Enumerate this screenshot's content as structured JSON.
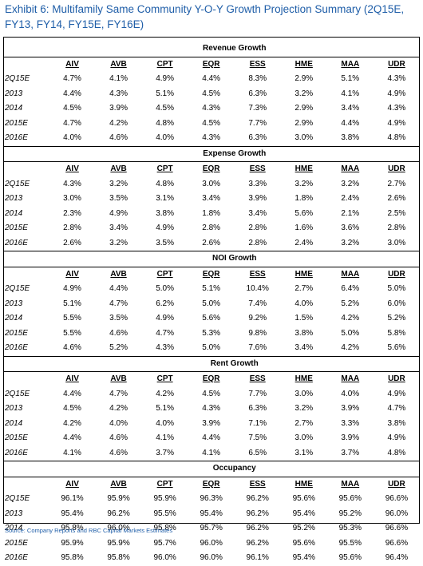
{
  "title": "Exhibit 6: Multifamily Same Community Y-O-Y Growth Projection Summary (2Q15E, FY13, FY14, FY15E, FY16E)",
  "columns": [
    "AIV",
    "AVB",
    "CPT",
    "EQR",
    "ESS",
    "HME",
    "MAA",
    "UDR"
  ],
  "sections": [
    {
      "name": "Revenue Growth",
      "rows": [
        {
          "label": "2Q15E",
          "values": [
            "4.7%",
            "4.1%",
            "4.9%",
            "4.4%",
            "8.3%",
            "2.9%",
            "5.1%",
            "4.3%"
          ]
        },
        {
          "label": "2013",
          "values": [
            "4.4%",
            "4.3%",
            "5.1%",
            "4.5%",
            "6.3%",
            "3.2%",
            "4.1%",
            "4.9%"
          ]
        },
        {
          "label": "2014",
          "values": [
            "4.5%",
            "3.9%",
            "4.5%",
            "4.3%",
            "7.3%",
            "2.9%",
            "3.4%",
            "4.3%"
          ]
        },
        {
          "label": "2015E",
          "values": [
            "4.7%",
            "4.2%",
            "4.8%",
            "4.5%",
            "7.7%",
            "2.9%",
            "4.4%",
            "4.9%"
          ]
        },
        {
          "label": "2016E",
          "values": [
            "4.0%",
            "4.6%",
            "4.0%",
            "4.3%",
            "6.3%",
            "3.0%",
            "3.8%",
            "4.8%"
          ]
        }
      ]
    },
    {
      "name": "Expense Growth",
      "rows": [
        {
          "label": "2Q15E",
          "values": [
            "4.3%",
            "3.2%",
            "4.8%",
            "3.0%",
            "3.3%",
            "3.2%",
            "3.2%",
            "2.7%"
          ]
        },
        {
          "label": "2013",
          "values": [
            "3.0%",
            "3.5%",
            "3.1%",
            "3.4%",
            "3.9%",
            "1.8%",
            "2.4%",
            "2.6%"
          ]
        },
        {
          "label": "2014",
          "values": [
            "2.3%",
            "4.9%",
            "3.8%",
            "1.8%",
            "3.4%",
            "5.6%",
            "2.1%",
            "2.5%"
          ]
        },
        {
          "label": "2015E",
          "values": [
            "2.8%",
            "3.4%",
            "4.9%",
            "2.8%",
            "2.8%",
            "1.6%",
            "3.6%",
            "2.8%"
          ]
        },
        {
          "label": "2016E",
          "values": [
            "2.6%",
            "3.2%",
            "3.5%",
            "2.6%",
            "2.8%",
            "2.4%",
            "3.2%",
            "3.0%"
          ]
        }
      ]
    },
    {
      "name": "NOI Growth",
      "rows": [
        {
          "label": "2Q15E",
          "values": [
            "4.9%",
            "4.4%",
            "5.0%",
            "5.1%",
            "10.4%",
            "2.7%",
            "6.4%",
            "5.0%"
          ]
        },
        {
          "label": "2013",
          "values": [
            "5.1%",
            "4.7%",
            "6.2%",
            "5.0%",
            "7.4%",
            "4.0%",
            "5.2%",
            "6.0%"
          ]
        },
        {
          "label": "2014",
          "values": [
            "5.5%",
            "3.5%",
            "4.9%",
            "5.6%",
            "9.2%",
            "1.5%",
            "4.2%",
            "5.2%"
          ]
        },
        {
          "label": "2015E",
          "values": [
            "5.5%",
            "4.6%",
            "4.7%",
            "5.3%",
            "9.8%",
            "3.8%",
            "5.0%",
            "5.8%"
          ]
        },
        {
          "label": "2016E",
          "values": [
            "4.6%",
            "5.2%",
            "4.3%",
            "5.0%",
            "7.6%",
            "3.4%",
            "4.2%",
            "5.6%"
          ]
        }
      ]
    },
    {
      "name": "Rent Growth",
      "rows": [
        {
          "label": "2Q15E",
          "values": [
            "4.4%",
            "4.7%",
            "4.2%",
            "4.5%",
            "7.7%",
            "3.0%",
            "4.0%",
            "4.9%"
          ]
        },
        {
          "label": "2013",
          "values": [
            "4.5%",
            "4.2%",
            "5.1%",
            "4.3%",
            "6.3%",
            "3.2%",
            "3.9%",
            "4.7%"
          ]
        },
        {
          "label": "2014",
          "values": [
            "4.2%",
            "4.0%",
            "4.0%",
            "3.9%",
            "7.1%",
            "2.7%",
            "3.3%",
            "3.8%"
          ]
        },
        {
          "label": "2015E",
          "values": [
            "4.4%",
            "4.6%",
            "4.1%",
            "4.4%",
            "7.5%",
            "3.0%",
            "3.9%",
            "4.9%"
          ]
        },
        {
          "label": "2016E",
          "values": [
            "4.1%",
            "4.6%",
            "3.7%",
            "4.1%",
            "6.5%",
            "3.1%",
            "3.7%",
            "4.8%"
          ]
        }
      ]
    },
    {
      "name": "Occupancy",
      "rows": [
        {
          "label": "2Q15E",
          "values": [
            "96.1%",
            "95.9%",
            "95.9%",
            "96.3%",
            "96.2%",
            "95.6%",
            "95.6%",
            "96.6%"
          ]
        },
        {
          "label": "2013",
          "values": [
            "95.4%",
            "96.2%",
            "95.5%",
            "95.4%",
            "96.2%",
            "95.4%",
            "95.2%",
            "96.0%"
          ]
        },
        {
          "label": "2014",
          "values": [
            "95.8%",
            "96.0%",
            "95.8%",
            "95.7%",
            "96.2%",
            "95.2%",
            "95.3%",
            "96.6%"
          ]
        },
        {
          "label": "2015E",
          "values": [
            "95.9%",
            "95.9%",
            "95.7%",
            "96.0%",
            "96.2%",
            "95.6%",
            "95.5%",
            "96.6%"
          ]
        },
        {
          "label": "2016E",
          "values": [
            "95.8%",
            "95.8%",
            "96.0%",
            "96.0%",
            "96.1%",
            "95.4%",
            "95.6%",
            "96.4%"
          ]
        }
      ]
    }
  ],
  "source": "Source: Company Reports and RBC Capital Markets Estimates",
  "colors": {
    "title": "#1f5ea8",
    "source": "#1f5ea8"
  }
}
